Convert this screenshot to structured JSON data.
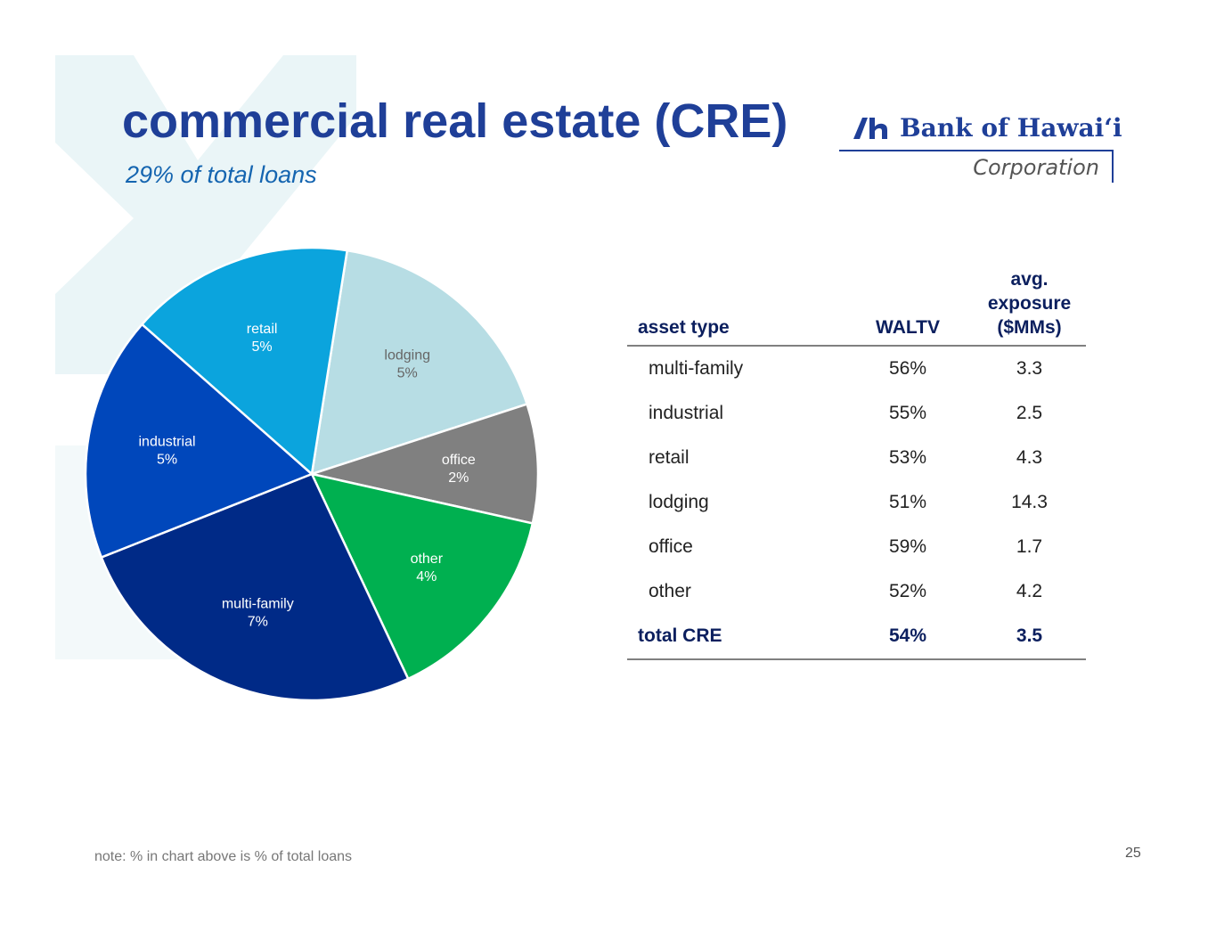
{
  "slide": {
    "title": "commercial real estate (CRE)",
    "subtitle": "29% of total loans",
    "note": "note: % in chart above is % of total loans",
    "page_number": "25"
  },
  "logo": {
    "name": "Bank of Hawaiʻi",
    "corporation": "Corporation",
    "brand_color": "#1f3f98"
  },
  "chart_data": {
    "type": "pie",
    "title": "",
    "start_angle_deg": -81,
    "direction": "clockwise",
    "slices": [
      {
        "label": "lodging",
        "value_label": "5%",
        "share": 0.175,
        "color": "#b7dde4",
        "text_color": "#666666"
      },
      {
        "label": "office",
        "value_label": "2%",
        "share": 0.085,
        "color": "#808080",
        "text_color": "#ffffff"
      },
      {
        "label": "other",
        "value_label": "4%",
        "share": 0.145,
        "color": "#00b050",
        "text_color": "#ffffff"
      },
      {
        "label": "multi-family",
        "value_label": "7%",
        "share": 0.26,
        "color": "#002a87",
        "text_color": "#ffffff"
      },
      {
        "label": "industrial",
        "value_label": "5%",
        "share": 0.175,
        "color": "#0047bb",
        "text_color": "#ffffff"
      },
      {
        "label": "retail",
        "value_label": "5%",
        "share": 0.16,
        "color": "#0ba4dd",
        "text_color": "#ffffff"
      }
    ]
  },
  "table": {
    "headers": {
      "asset_type": "asset type",
      "waltv": "WALTV",
      "avg_line1": "avg.",
      "avg_line2": "exposure",
      "avg_line3": "($MMs)"
    },
    "rows": [
      {
        "asset": "multi-family",
        "waltv": "56%",
        "avg": "3.3"
      },
      {
        "asset": "industrial",
        "waltv": "55%",
        "avg": "2.5"
      },
      {
        "asset": "retail",
        "waltv": "53%",
        "avg": "4.3"
      },
      {
        "asset": "lodging",
        "waltv": "51%",
        "avg": "14.3"
      },
      {
        "asset": "office",
        "waltv": "59%",
        "avg": "1.7"
      },
      {
        "asset": "other",
        "waltv": "52%",
        "avg": "4.2"
      }
    ],
    "total": {
      "asset": "total CRE",
      "waltv": "54%",
      "avg": "3.5"
    }
  }
}
